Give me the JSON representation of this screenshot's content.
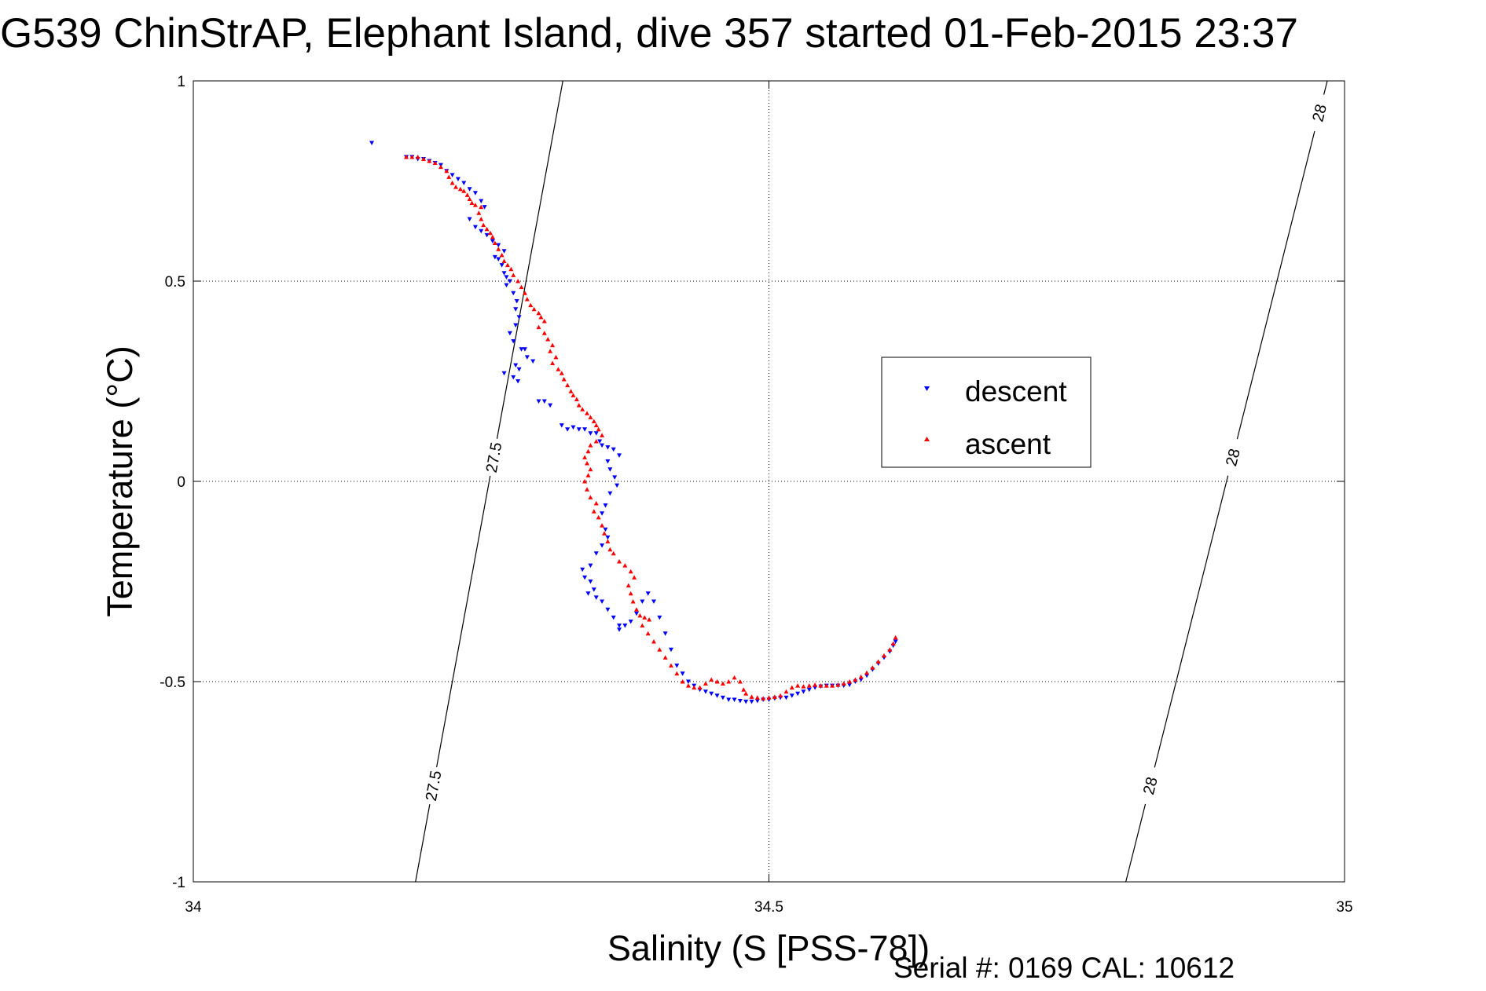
{
  "chart_data": {
    "type": "scatter",
    "title": "G539 ChinStrAP, Elephant Island, dive 357 started 01-Feb-2015 23:37",
    "xlabel": "Salinity (S [PSS-78])",
    "ylabel": "Temperature (°C)",
    "xlim": [
      34,
      35
    ],
    "ylim": [
      -1,
      1
    ],
    "x_ticks": [
      "34",
      "34.5",
      "35"
    ],
    "y_ticks": [
      "1",
      "0.5",
      "0",
      "-0.5",
      "-1"
    ],
    "grid": true,
    "legend_position": "center-right",
    "footer": "Serial #: 0169 CAL: 10612",
    "series": [
      {
        "name": "descent",
        "color": "#0000ff",
        "marker": "triangle-down",
        "points": [
          [
            34.155,
            0.845
          ],
          [
            34.185,
            0.81
          ],
          [
            34.19,
            0.81
          ],
          [
            34.195,
            0.805
          ],
          [
            34.2,
            0.805
          ],
          [
            34.205,
            0.8
          ],
          [
            34.21,
            0.795
          ],
          [
            34.215,
            0.79
          ],
          [
            34.22,
            0.775
          ],
          [
            34.225,
            0.765
          ],
          [
            34.23,
            0.755
          ],
          [
            34.235,
            0.745
          ],
          [
            34.24,
            0.73
          ],
          [
            34.245,
            0.72
          ],
          [
            34.25,
            0.7
          ],
          [
            34.253,
            0.685
          ],
          [
            34.24,
            0.655
          ],
          [
            34.245,
            0.635
          ],
          [
            34.25,
            0.625
          ],
          [
            34.255,
            0.615
          ],
          [
            34.26,
            0.6
          ],
          [
            34.265,
            0.59
          ],
          [
            34.27,
            0.575
          ],
          [
            34.262,
            0.56
          ],
          [
            34.265,
            0.555
          ],
          [
            34.268,
            0.54
          ],
          [
            34.27,
            0.52
          ],
          [
            34.272,
            0.51
          ],
          [
            34.275,
            0.5
          ],
          [
            34.272,
            0.49
          ],
          [
            34.278,
            0.47
          ],
          [
            34.281,
            0.45
          ],
          [
            34.28,
            0.43
          ],
          [
            34.283,
            0.41
          ],
          [
            34.28,
            0.39
          ],
          [
            34.275,
            0.37
          ],
          [
            34.278,
            0.35
          ],
          [
            34.285,
            0.33
          ],
          [
            34.29,
            0.31
          ],
          [
            34.295,
            0.3
          ],
          [
            34.28,
            0.29
          ],
          [
            34.283,
            0.28
          ],
          [
            34.27,
            0.27
          ],
          [
            34.278,
            0.26
          ],
          [
            34.282,
            0.25
          ],
          [
            34.288,
            0.33
          ],
          [
            34.3,
            0.2
          ],
          [
            34.305,
            0.2
          ],
          [
            34.31,
            0.19
          ],
          [
            34.32,
            0.14
          ],
          [
            34.325,
            0.13
          ],
          [
            34.33,
            0.135
          ],
          [
            34.335,
            0.13
          ],
          [
            34.34,
            0.13
          ],
          [
            34.345,
            0.12
          ],
          [
            34.35,
            0.12
          ],
          [
            34.353,
            0.1
          ],
          [
            34.355,
            0.09
          ],
          [
            34.36,
            0.085
          ],
          [
            34.365,
            0.08
          ],
          [
            34.37,
            0.065
          ],
          [
            34.36,
            0.05
          ],
          [
            34.362,
            0.03
          ],
          [
            34.366,
            0.01
          ],
          [
            34.368,
            -0.01
          ],
          [
            34.362,
            -0.03
          ],
          [
            34.358,
            -0.06
          ],
          [
            34.355,
            -0.08
          ],
          [
            34.358,
            -0.12
          ],
          [
            34.36,
            -0.14
          ],
          [
            34.355,
            -0.16
          ],
          [
            34.35,
            -0.18
          ],
          [
            34.345,
            -0.21
          ],
          [
            34.338,
            -0.22
          ],
          [
            34.34,
            -0.24
          ],
          [
            34.345,
            -0.25
          ],
          [
            34.348,
            -0.27
          ],
          [
            34.343,
            -0.28
          ],
          [
            34.35,
            -0.29
          ],
          [
            34.355,
            -0.3
          ],
          [
            34.36,
            -0.32
          ],
          [
            34.365,
            -0.34
          ],
          [
            34.37,
            -0.36
          ],
          [
            34.37,
            -0.37
          ],
          [
            34.375,
            -0.36
          ],
          [
            34.38,
            -0.35
          ],
          [
            34.385,
            -0.33
          ],
          [
            34.39,
            -0.3
          ],
          [
            34.395,
            -0.28
          ],
          [
            34.4,
            -0.3
          ],
          [
            34.405,
            -0.34
          ],
          [
            34.41,
            -0.38
          ],
          [
            34.415,
            -0.42
          ],
          [
            34.42,
            -0.46
          ],
          [
            34.425,
            -0.48
          ],
          [
            34.43,
            -0.5
          ],
          [
            34.435,
            -0.51
          ],
          [
            34.44,
            -0.52
          ],
          [
            34.445,
            -0.525
          ],
          [
            34.45,
            -0.53
          ],
          [
            34.455,
            -0.535
          ],
          [
            34.46,
            -0.54
          ],
          [
            34.465,
            -0.545
          ],
          [
            34.47,
            -0.545
          ],
          [
            34.475,
            -0.548
          ],
          [
            34.48,
            -0.55
          ],
          [
            34.485,
            -0.55
          ],
          [
            34.49,
            -0.548
          ],
          [
            34.495,
            -0.545
          ],
          [
            34.5,
            -0.545
          ],
          [
            34.505,
            -0.542
          ],
          [
            34.51,
            -0.54
          ],
          [
            34.515,
            -0.54
          ],
          [
            34.52,
            -0.535
          ],
          [
            34.525,
            -0.53
          ],
          [
            34.53,
            -0.525
          ],
          [
            34.535,
            -0.52
          ],
          [
            34.54,
            -0.515
          ],
          [
            34.545,
            -0.512
          ],
          [
            34.55,
            -0.51
          ],
          [
            34.555,
            -0.51
          ],
          [
            34.56,
            -0.51
          ],
          [
            34.565,
            -0.51
          ],
          [
            34.57,
            -0.508
          ],
          [
            34.575,
            -0.5
          ],
          [
            34.58,
            -0.495
          ],
          [
            34.585,
            -0.485
          ],
          [
            34.59,
            -0.47
          ],
          [
            34.595,
            -0.455
          ],
          [
            34.6,
            -0.44
          ],
          [
            34.605,
            -0.425
          ],
          [
            34.608,
            -0.41
          ],
          [
            34.61,
            -0.4
          ]
        ]
      },
      {
        "name": "ascent",
        "color": "#ff0000",
        "marker": "triangle-up",
        "points": [
          [
            34.185,
            0.81
          ],
          [
            34.19,
            0.81
          ],
          [
            34.195,
            0.81
          ],
          [
            34.2,
            0.805
          ],
          [
            34.205,
            0.8
          ],
          [
            34.21,
            0.795
          ],
          [
            34.215,
            0.785
          ],
          [
            34.22,
            0.775
          ],
          [
            34.222,
            0.76
          ],
          [
            34.225,
            0.745
          ],
          [
            34.228,
            0.735
          ],
          [
            34.232,
            0.73
          ],
          [
            34.235,
            0.725
          ],
          [
            34.238,
            0.715
          ],
          [
            34.24,
            0.705
          ],
          [
            34.242,
            0.695
          ],
          [
            34.245,
            0.69
          ],
          [
            34.25,
            0.685
          ],
          [
            34.248,
            0.67
          ],
          [
            34.25,
            0.655
          ],
          [
            34.252,
            0.64
          ],
          [
            34.255,
            0.63
          ],
          [
            34.258,
            0.62
          ],
          [
            34.26,
            0.61
          ],
          [
            34.262,
            0.595
          ],
          [
            34.265,
            0.58
          ],
          [
            34.268,
            0.565
          ],
          [
            34.27,
            0.55
          ],
          [
            34.273,
            0.54
          ],
          [
            34.276,
            0.53
          ],
          [
            34.278,
            0.515
          ],
          [
            34.282,
            0.5
          ],
          [
            34.285,
            0.485
          ],
          [
            34.288,
            0.47
          ],
          [
            34.29,
            0.455
          ],
          [
            34.293,
            0.44
          ],
          [
            34.296,
            0.43
          ],
          [
            34.3,
            0.42
          ],
          [
            34.302,
            0.41
          ],
          [
            34.305,
            0.4
          ],
          [
            34.3,
            0.385
          ],
          [
            34.305,
            0.37
          ],
          [
            34.308,
            0.355
          ],
          [
            34.312,
            0.34
          ],
          [
            34.31,
            0.325
          ],
          [
            34.315,
            0.31
          ],
          [
            34.312,
            0.295
          ],
          [
            34.317,
            0.28
          ],
          [
            34.32,
            0.27
          ],
          [
            34.322,
            0.255
          ],
          [
            34.325,
            0.24
          ],
          [
            34.328,
            0.225
          ],
          [
            34.33,
            0.215
          ],
          [
            34.333,
            0.205
          ],
          [
            34.335,
            0.19
          ],
          [
            34.338,
            0.18
          ],
          [
            34.342,
            0.17
          ],
          [
            34.345,
            0.16
          ],
          [
            34.348,
            0.15
          ],
          [
            34.35,
            0.14
          ],
          [
            34.352,
            0.13
          ],
          [
            34.355,
            0.115
          ],
          [
            34.35,
            0.1
          ],
          [
            34.345,
            0.09
          ],
          [
            34.343,
            0.075
          ],
          [
            34.34,
            0.06
          ],
          [
            34.342,
            0.045
          ],
          [
            34.345,
            0.03
          ],
          [
            34.343,
            0.015
          ],
          [
            34.34,
            0.0
          ],
          [
            34.342,
            -0.02
          ],
          [
            34.345,
            -0.04
          ],
          [
            34.35,
            -0.055
          ],
          [
            34.348,
            -0.075
          ],
          [
            34.352,
            -0.09
          ],
          [
            34.355,
            -0.11
          ],
          [
            34.357,
            -0.13
          ],
          [
            34.36,
            -0.15
          ],
          [
            34.362,
            -0.17
          ],
          [
            34.365,
            -0.18
          ],
          [
            34.37,
            -0.2
          ],
          [
            34.375,
            -0.21
          ],
          [
            34.38,
            -0.225
          ],
          [
            34.383,
            -0.24
          ],
          [
            34.378,
            -0.26
          ],
          [
            34.38,
            -0.28
          ],
          [
            34.382,
            -0.3
          ],
          [
            34.385,
            -0.32
          ],
          [
            34.388,
            -0.335
          ],
          [
            34.392,
            -0.34
          ],
          [
            34.396,
            -0.345
          ],
          [
            34.39,
            -0.36
          ],
          [
            34.395,
            -0.38
          ],
          [
            34.4,
            -0.4
          ],
          [
            34.405,
            -0.42
          ],
          [
            34.41,
            -0.44
          ],
          [
            34.415,
            -0.46
          ],
          [
            34.42,
            -0.48
          ],
          [
            34.425,
            -0.5
          ],
          [
            34.43,
            -0.51
          ],
          [
            34.435,
            -0.515
          ],
          [
            34.44,
            -0.515
          ],
          [
            34.445,
            -0.505
          ],
          [
            34.45,
            -0.495
          ],
          [
            34.455,
            -0.5
          ],
          [
            34.46,
            -0.505
          ],
          [
            34.465,
            -0.5
          ],
          [
            34.47,
            -0.49
          ],
          [
            34.475,
            -0.5
          ],
          [
            34.478,
            -0.52
          ],
          [
            34.48,
            -0.53
          ],
          [
            34.485,
            -0.538
          ],
          [
            34.49,
            -0.54
          ],
          [
            34.495,
            -0.542
          ],
          [
            34.5,
            -0.54
          ],
          [
            34.505,
            -0.538
          ],
          [
            34.51,
            -0.535
          ],
          [
            34.515,
            -0.525
          ],
          [
            34.52,
            -0.515
          ],
          [
            34.525,
            -0.51
          ],
          [
            34.53,
            -0.512
          ],
          [
            34.535,
            -0.51
          ],
          [
            34.54,
            -0.508
          ],
          [
            34.545,
            -0.51
          ],
          [
            34.55,
            -0.51
          ],
          [
            34.555,
            -0.51
          ],
          [
            34.56,
            -0.508
          ],
          [
            34.565,
            -0.505
          ],
          [
            34.57,
            -0.5
          ],
          [
            34.575,
            -0.495
          ],
          [
            34.58,
            -0.488
          ],
          [
            34.585,
            -0.478
          ],
          [
            34.59,
            -0.465
          ],
          [
            34.595,
            -0.45
          ],
          [
            34.6,
            -0.435
          ],
          [
            34.605,
            -0.42
          ],
          [
            34.608,
            -0.405
          ],
          [
            34.61,
            -0.39
          ]
        ]
      }
    ],
    "isopycnals": [
      {
        "label": "27.5",
        "x_bottom": 34.193,
        "x_top": 34.321
      },
      {
        "label": "28",
        "x_bottom": 34.81,
        "x_top": 34.985
      }
    ]
  }
}
